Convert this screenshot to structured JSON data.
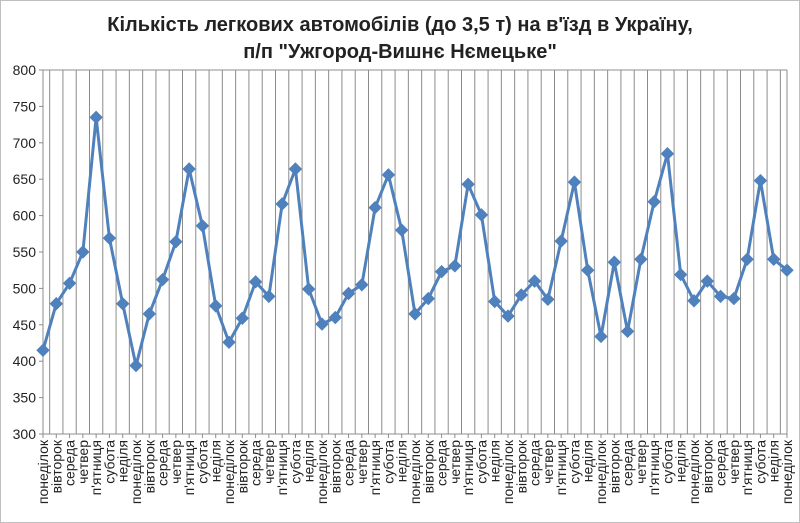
{
  "chart_data": {
    "type": "line",
    "title_line1": "Кількість легкових автомобілів (до 3,5 т) на в'їзд в Україну,",
    "title_line2": "п/п \"Ужгород-Вишнє Нємецьке\"",
    "ylim": [
      300,
      800
    ],
    "yticks": [
      "300",
      "350",
      "400",
      "450",
      "500",
      "550",
      "600",
      "650",
      "700",
      "750",
      "800"
    ],
    "grid": "vertical gridlines only",
    "legend": "none",
    "categories": [
      "понеділок",
      "вівторок",
      "середа",
      "четвер",
      "п'ятниця",
      "субота",
      "неділя",
      "понеділок",
      "вівторок",
      "середа",
      "четвер",
      "п'ятниця",
      "субота",
      "неділя",
      "понеділок",
      "вівторок",
      "середа",
      "четвер",
      "п'ятниця",
      "субота",
      "неділя",
      "понеділок",
      "вівторок",
      "середа",
      "четвер",
      "п'ятниця",
      "субота",
      "неділя",
      "понеділок",
      "вівторок",
      "середа",
      "четвер",
      "п'ятниця",
      "субота",
      "неділя",
      "понеділок",
      "вівторок",
      "середа",
      "четвер",
      "п'ятниця",
      "субота",
      "неділя",
      "понеділок",
      "вівторок",
      "середа",
      "четвер",
      "п'ятниця",
      "субота",
      "неділя",
      "понеділок",
      "вівторок",
      "середа",
      "четвер",
      "п'ятниця",
      "субота",
      "неділя",
      "понеділок"
    ],
    "series": [
      {
        "color": "#4f81bd",
        "values": [
          415,
          479,
          507,
          550,
          735,
          569,
          479,
          394,
          465,
          512,
          564,
          664,
          586,
          476,
          426,
          459,
          509,
          489,
          616,
          664,
          499,
          451,
          460,
          493,
          505,
          611,
          656,
          580,
          465,
          486,
          523,
          531,
          643,
          601,
          482,
          462,
          491,
          510,
          485,
          565,
          646,
          525,
          434,
          536,
          441,
          540,
          619,
          685,
          519,
          483,
          510,
          489,
          486,
          540,
          648,
          540,
          525
        ]
      }
    ]
  }
}
